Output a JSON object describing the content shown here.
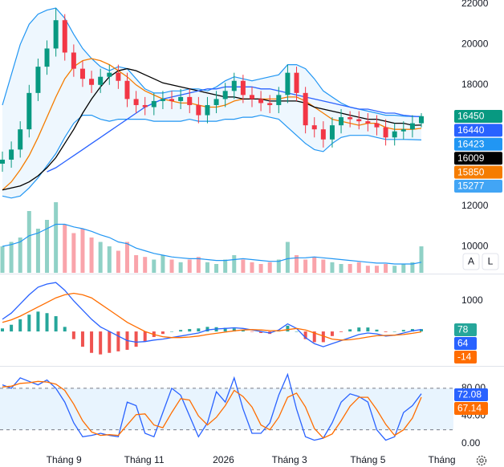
{
  "chart_data": [
    {
      "type": "candlestick",
      "x": [
        0,
        1,
        2,
        3,
        4,
        5,
        6,
        7,
        8,
        9,
        10,
        11,
        12,
        13,
        14,
        15,
        16,
        17,
        18,
        19,
        20,
        21,
        22,
        23,
        24,
        25,
        26,
        27,
        28,
        29,
        30,
        31,
        32,
        33,
        34,
        35,
        36,
        37,
        38,
        39,
        40,
        41,
        42,
        43,
        44,
        45,
        46,
        47
      ],
      "xlim": [
        -0.27,
        50.6
      ],
      "xticks": [
        {
          "value": 6.9,
          "label": "Tháng 9"
        },
        {
          "value": 15.9,
          "label": "Tháng 11"
        },
        {
          "value": 24.8,
          "label": "2026"
        },
        {
          "value": 32.2,
          "label": "Tháng 3"
        },
        {
          "value": 41.0,
          "label": "Tháng 5"
        },
        {
          "value": 49.3,
          "label": "Tháng"
        }
      ],
      "ylim": [
        8700,
        22200
      ],
      "yticks": [
        10000,
        12000,
        18000,
        20000,
        22000
      ],
      "up_color": "#089981",
      "down_color": "#f23645",
      "open": [
        14100,
        14300,
        14800,
        15800,
        17600,
        18900,
        19800,
        21200,
        19600,
        18800,
        18300,
        18000,
        18400,
        18600,
        18200,
        17300,
        17000,
        16900,
        17200,
        17300,
        17200,
        17400,
        17000,
        16500,
        17000,
        17300,
        17700,
        18200,
        17500,
        17300,
        17100,
        17000,
        17500,
        18600,
        17600,
        16000,
        15800,
        15300,
        16000,
        16400,
        16300,
        16200,
        16100,
        15900,
        15400,
        15700,
        15800,
        16100
      ],
      "high": [
        14700,
        15200,
        16200,
        18000,
        19300,
        20200,
        21800,
        21500,
        20000,
        19200,
        18700,
        18800,
        19000,
        19000,
        18600,
        17700,
        17400,
        17600,
        17700,
        17700,
        17800,
        17800,
        17400,
        17400,
        17700,
        18100,
        18600,
        18500,
        17900,
        17700,
        17500,
        17900,
        19000,
        18900,
        17900,
        16400,
        16200,
        16400,
        16800,
        16700,
        16700,
        16600,
        16500,
        16300,
        16100,
        16200,
        16500,
        16600
      ],
      "low": [
        13700,
        13900,
        14400,
        15400,
        17200,
        18500,
        19400,
        19200,
        18400,
        17900,
        17600,
        17600,
        18000,
        17800,
        16900,
        16600,
        16500,
        16500,
        16800,
        16800,
        16800,
        16600,
        16100,
        16100,
        16600,
        16900,
        17300,
        17100,
        16900,
        16700,
        16600,
        16600,
        17100,
        17200,
        15600,
        15400,
        14900,
        14900,
        15600,
        15900,
        15800,
        15700,
        15500,
        15000,
        15000,
        15300,
        15400,
        15900
      ],
      "close": [
        14300,
        14800,
        15800,
        17600,
        18900,
        19800,
        21200,
        19600,
        18800,
        18300,
        18000,
        18400,
        18600,
        18200,
        17300,
        17000,
        16900,
        17200,
        17300,
        17200,
        17400,
        17000,
        16500,
        17000,
        17300,
        17700,
        18200,
        17500,
        17300,
        17100,
        17000,
        17500,
        18600,
        17600,
        16000,
        15800,
        15300,
        16000,
        16400,
        16300,
        16200,
        16100,
        15900,
        15400,
        15700,
        15800,
        16100,
        16450
      ],
      "bollinger": {
        "color": "#2196f3",
        "fill": "rgba(33,150,243,0.08)",
        "upper": [
          17000,
          18500,
          20000,
          21000,
          21500,
          21700,
          21800,
          21300,
          20500,
          19800,
          19300,
          18900,
          18700,
          18900,
          18800,
          18300,
          17800,
          17600,
          17600,
          17700,
          17700,
          17800,
          17800,
          17700,
          17900,
          18200,
          18400,
          18300,
          18200,
          18300,
          18400,
          18500,
          19000,
          19000,
          18800,
          18300,
          17700,
          17400,
          17100,
          16900,
          16800,
          16700,
          16600,
          16500,
          16500,
          16450,
          16440,
          16440
        ],
        "lower": [
          12500,
          12400,
          12500,
          12900,
          13400,
          14000,
          14600,
          15400,
          16100,
          16500,
          16500,
          16300,
          16200,
          16300,
          16300,
          16300,
          16300,
          16200,
          16200,
          16200,
          16200,
          16300,
          16200,
          16200,
          16200,
          16300,
          16300,
          16400,
          16400,
          16500,
          16400,
          16300,
          15900,
          15500,
          15100,
          14800,
          14700,
          15100,
          15400,
          15500,
          15500,
          15500,
          15400,
          15300,
          15300,
          15300,
          15290,
          15277
        ]
      },
      "series": [
        {
          "color": "#f57c00",
          "values": [
            12800,
            13200,
            13800,
            14500,
            15400,
            16400,
            17400,
            18300,
            18900,
            19200,
            19300,
            19200,
            19000,
            18700,
            18400,
            18000,
            17700,
            17500,
            17300,
            17200,
            17100,
            17100,
            17000,
            16900,
            16900,
            17000,
            17200,
            17300,
            17300,
            17300,
            17300,
            17300,
            17400,
            17400,
            17200,
            16900,
            16600,
            16300,
            16200,
            16100,
            16000,
            16100,
            16100,
            15900,
            15800,
            15800,
            15800,
            15850
          ]
        },
        {
          "color": "#000000",
          "values": [
            12800,
            12900,
            13000,
            13200,
            13500,
            13900,
            14400,
            15100,
            15800,
            16600,
            17300,
            17900,
            18400,
            18700,
            18800,
            18700,
            18500,
            18300,
            18100,
            18000,
            17900,
            17800,
            17700,
            17600,
            17500,
            17400,
            17400,
            17300,
            17300,
            17300,
            17200,
            17200,
            17200,
            17200,
            17100,
            16900,
            16800,
            16700,
            16600,
            16500,
            16400,
            16300,
            16300,
            16200,
            16100,
            16100,
            16000,
            16009
          ]
        },
        {
          "color": "#2962ff",
          "values": [
            null,
            null,
            null,
            null,
            null,
            13700,
            13900,
            14200,
            14500,
            14800,
            15100,
            15400,
            15700,
            16000,
            16300,
            16600,
            16900,
            17100,
            17300,
            17400,
            17500,
            17600,
            17700,
            17800,
            17800,
            17900,
            17900,
            17900,
            17900,
            17800,
            17800,
            17700,
            17600,
            17500,
            17400,
            17300,
            17200,
            17100,
            17000,
            16900,
            16800,
            16800,
            16700,
            16600,
            16600,
            16500,
            16450,
            16423
          ]
        }
      ],
      "volume": {
        "ylim": [
          0,
          100
        ],
        "up_color": "rgba(8,153,129,0.45)",
        "down_color": "rgba(242,54,69,0.45)",
        "ma_color": "#2196f3",
        "values": [
          30,
          35,
          40,
          70,
          50,
          60,
          80,
          55,
          45,
          50,
          40,
          35,
          30,
          25,
          35,
          20,
          18,
          15,
          20,
          15,
          12,
          15,
          18,
          12,
          10,
          15,
          20,
          15,
          12,
          10,
          12,
          15,
          35,
          20,
          15,
          18,
          15,
          12,
          10,
          10,
          12,
          8,
          8,
          10,
          8,
          10,
          12,
          30
        ],
        "ma": [
          30,
          32,
          35,
          42,
          45,
          50,
          55,
          55,
          52,
          50,
          47,
          43,
          40,
          35,
          33,
          28,
          25,
          22,
          20,
          18,
          17,
          16,
          16,
          15,
          14,
          14,
          15,
          16,
          15,
          14,
          13,
          13,
          16,
          17,
          17,
          18,
          17,
          16,
          15,
          14,
          13,
          12,
          11,
          11,
          10,
          10,
          10,
          12
        ]
      },
      "last_values": [
        {
          "value": 16450,
          "color": "#089981"
        },
        {
          "value": 16440,
          "color": "#2962ff"
        },
        {
          "value": 16423,
          "color": "#2196f3"
        },
        {
          "value": 16009,
          "color": "#000000"
        },
        {
          "value": 15850,
          "color": "#f57c00"
        },
        {
          "value": 15277,
          "color": "#42a5f5"
        }
      ],
      "buttons": [
        "A",
        "L"
      ]
    },
    {
      "type": "macd",
      "ylim": [
        -1100,
        1840
      ],
      "yticks": [
        1000
      ],
      "series": [
        {
          "color": "#2962ff",
          "values": [
            400,
            600,
            900,
            1200,
            1450,
            1550,
            1600,
            1350,
            1000,
            700,
            400,
            150,
            0,
            -150,
            -300,
            -350,
            -330,
            -280,
            -250,
            -200,
            -150,
            -100,
            -50,
            50,
            80,
            100,
            120,
            100,
            50,
            0,
            -50,
            50,
            250,
            100,
            -200,
            -400,
            -500,
            -400,
            -300,
            -200,
            -100,
            -50,
            -80,
            -150,
            -120,
            -50,
            20,
            64
          ]
        },
        {
          "color": "#ff6d00",
          "values": [
            300,
            380,
            500,
            650,
            800,
            950,
            1100,
            1200,
            1250,
            1200,
            1100,
            900,
            700,
            500,
            300,
            150,
            0,
            -100,
            -170,
            -200,
            -200,
            -180,
            -150,
            -100,
            -60,
            -20,
            20,
            50,
            60,
            50,
            30,
            20,
            60,
            100,
            50,
            -50,
            -150,
            -250,
            -280,
            -270,
            -230,
            -180,
            -140,
            -130,
            -120,
            -100,
            -60,
            -14
          ]
        }
      ],
      "histogram": {
        "up_color": "#26a69a",
        "down_color": "#ef5350",
        "values": [
          100,
          220,
          400,
          550,
          650,
          600,
          500,
          150,
          -250,
          -500,
          -700,
          -750,
          -700,
          -650,
          -600,
          -500,
          -330,
          -180,
          -80,
          0,
          50,
          80,
          100,
          150,
          140,
          120,
          100,
          50,
          -10,
          -50,
          -80,
          30,
          190,
          0,
          -250,
          -350,
          -350,
          -150,
          -20,
          70,
          130,
          130,
          60,
          -20,
          0,
          50,
          80,
          78
        ]
      },
      "last_values": [
        {
          "value": 78,
          "color": "#26a69a"
        },
        {
          "value": 64,
          "color": "#2962ff"
        },
        {
          "value": -14,
          "color": "#ff6d00"
        }
      ]
    },
    {
      "type": "stochastic",
      "ylim": [
        -14,
        110
      ],
      "yticks": [
        {
          "value": 80,
          "label": "80.00"
        },
        {
          "value": 40,
          "label": "40.00"
        },
        {
          "value": 0,
          "label": "0.00"
        }
      ],
      "band": [
        20,
        80
      ],
      "band_fill": "rgba(33,150,243,0.1)",
      "series": [
        {
          "color": "#2962ff",
          "values": [
            85,
            80,
            95,
            90,
            85,
            92,
            80,
            60,
            30,
            10,
            12,
            15,
            12,
            10,
            60,
            55,
            15,
            10,
            45,
            80,
            70,
            40,
            10,
            30,
            75,
            60,
            95,
            50,
            15,
            15,
            30,
            70,
            100,
            50,
            10,
            5,
            8,
            30,
            60,
            72,
            68,
            60,
            20,
            5,
            10,
            45,
            55,
            72.08
          ]
        },
        {
          "color": "#ff6d00",
          "values": [
            82,
            83,
            87,
            88,
            90,
            89,
            86,
            77,
            57,
            33,
            17,
            12,
            13,
            12,
            27,
            42,
            43,
            27,
            23,
            45,
            65,
            63,
            40,
            27,
            38,
            55,
            77,
            68,
            53,
            27,
            20,
            38,
            67,
            73,
            53,
            22,
            8,
            14,
            33,
            54,
            67,
            67,
            49,
            28,
            12,
            20,
            37,
            67.14
          ]
        }
      ],
      "last_values": [
        {
          "value": 72.08,
          "color": "#2962ff"
        },
        {
          "value": 67.14,
          "color": "#ff6d00"
        }
      ]
    }
  ]
}
